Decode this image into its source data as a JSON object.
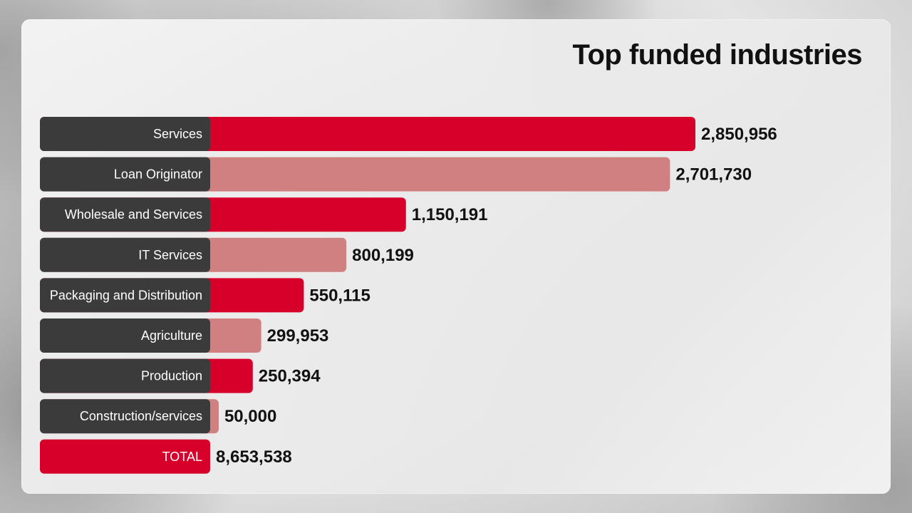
{
  "chart_data": {
    "type": "bar",
    "orientation": "horizontal",
    "title": "Top funded industries",
    "categories": [
      "Services",
      "Loan Originator",
      "Wholesale and Services",
      "IT Services",
      "Packaging and Distribution",
      "Agriculture",
      "Production",
      "Construction/services"
    ],
    "values": [
      2850956,
      2701730,
      1150191,
      800199,
      550115,
      299953,
      250394,
      50000
    ],
    "value_labels": [
      "2,850,956",
      "2,701,730",
      "1,150,191",
      "800,199",
      "550,115",
      "299,953",
      "250,394",
      "50,000"
    ],
    "total": {
      "label": "TOTAL",
      "value": 8653538,
      "value_label": "8,653,538"
    },
    "colors": {
      "bar_primary": "#D6002A",
      "bar_secondary": "#D08080",
      "label_box": "#3B3B3B",
      "total_value_text": "#D6002A"
    },
    "grid": false,
    "legend": "none"
  }
}
